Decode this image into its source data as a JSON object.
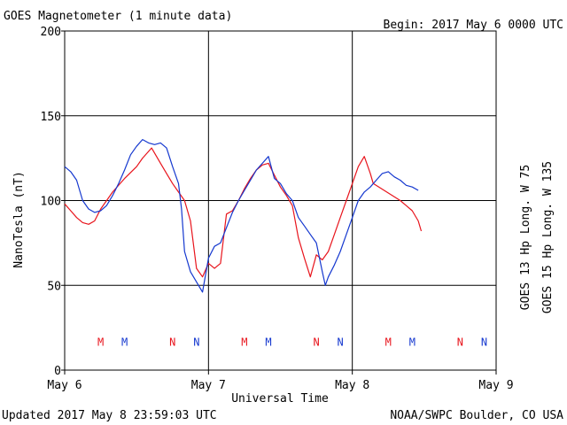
{
  "chart_data": {
    "type": "line",
    "title": "GOES Magnetometer (1 minute data)",
    "begin_label": "Begin:  2017 May 6 0000 UTC",
    "updated_label": "Updated 2017 May  8 23:59:03 UTC",
    "credit_label": "NOAA/SWPC Boulder, CO USA",
    "xlabel": "Universal Time",
    "ylabel": "NanoTesla (nT)",
    "ylim": [
      0,
      200
    ],
    "yticks": [
      0,
      50,
      100,
      150,
      200
    ],
    "ytick_labels": [
      "0",
      "50",
      "100",
      "150",
      "200"
    ],
    "xlim": [
      0,
      72
    ],
    "xticks": [
      0,
      24,
      48,
      72
    ],
    "xtick_labels": [
      "May 6",
      "May 7",
      "May 8",
      "May 9"
    ],
    "grid": true,
    "x_unit": "hours since 2017 May 6 0000 UTC",
    "series": [
      {
        "name": "GOES 13 Hp  Long. W 75",
        "color": "#e8141c",
        "points": [
          [
            0,
            98
          ],
          [
            1,
            94
          ],
          [
            2,
            90
          ],
          [
            3,
            87
          ],
          [
            4,
            86
          ],
          [
            5,
            88
          ],
          [
            6,
            95
          ],
          [
            8,
            105
          ],
          [
            10,
            113
          ],
          [
            12,
            120
          ],
          [
            13,
            125
          ],
          [
            14,
            129
          ],
          [
            14.5,
            131
          ],
          [
            15,
            128
          ],
          [
            16,
            122
          ],
          [
            17,
            116
          ],
          [
            18,
            110
          ],
          [
            19,
            105
          ],
          [
            20,
            100
          ],
          [
            21,
            88
          ],
          [
            22,
            60
          ],
          [
            23,
            55
          ],
          [
            24,
            63
          ],
          [
            25,
            60
          ],
          [
            26,
            63
          ],
          [
            27,
            92
          ],
          [
            28,
            94
          ],
          [
            29,
            100
          ],
          [
            30,
            107
          ],
          [
            31,
            113
          ],
          [
            32,
            118
          ],
          [
            33,
            121
          ],
          [
            34,
            122
          ],
          [
            35,
            115
          ],
          [
            36,
            108
          ],
          [
            37,
            103
          ],
          [
            38,
            97
          ],
          [
            39,
            78
          ],
          [
            40,
            66
          ],
          [
            41,
            55
          ],
          [
            42,
            68
          ],
          [
            43,
            65
          ],
          [
            44,
            70
          ],
          [
            45,
            80
          ],
          [
            46,
            90
          ],
          [
            47,
            100
          ],
          [
            48,
            110
          ],
          [
            49,
            120
          ],
          [
            50,
            126
          ],
          [
            51,
            116
          ],
          [
            51.5,
            110
          ],
          [
            56,
            100
          ],
          [
            57,
            97
          ],
          [
            58,
            94
          ],
          [
            59,
            88
          ],
          [
            59.5,
            82
          ]
        ]
      },
      {
        "name": "GOES 15 Hp  Long. W 135",
        "color": "#1538cf",
        "points": [
          [
            0,
            120
          ],
          [
            1,
            117
          ],
          [
            2,
            112
          ],
          [
            3,
            100
          ],
          [
            4,
            95
          ],
          [
            5,
            93
          ],
          [
            6,
            94
          ],
          [
            7,
            97
          ],
          [
            8,
            103
          ],
          [
            9,
            110
          ],
          [
            10,
            118
          ],
          [
            11,
            127
          ],
          [
            12,
            132
          ],
          [
            13,
            136
          ],
          [
            14,
            134
          ],
          [
            15,
            133
          ],
          [
            16,
            134
          ],
          [
            17,
            131
          ],
          [
            18,
            120
          ],
          [
            19,
            110
          ],
          [
            19.5,
            95
          ],
          [
            20,
            70
          ],
          [
            21,
            58
          ],
          [
            22,
            52
          ],
          [
            23,
            46
          ],
          [
            24,
            66
          ],
          [
            25,
            73
          ],
          [
            26,
            75
          ],
          [
            27,
            84
          ],
          [
            28,
            93
          ],
          [
            29,
            100
          ],
          [
            30,
            106
          ],
          [
            31,
            112
          ],
          [
            32,
            118
          ],
          [
            33,
            122
          ],
          [
            34,
            126
          ],
          [
            35,
            113
          ],
          [
            36,
            110
          ],
          [
            37,
            104
          ],
          [
            38,
            100
          ],
          [
            39,
            90
          ],
          [
            40,
            85
          ],
          [
            41,
            80
          ],
          [
            42,
            75
          ],
          [
            43,
            58
          ],
          [
            43.5,
            50
          ],
          [
            44,
            55
          ],
          [
            45,
            62
          ],
          [
            46,
            70
          ],
          [
            47,
            80
          ],
          [
            48,
            90
          ],
          [
            49,
            100
          ],
          [
            50,
            105
          ],
          [
            51,
            108
          ],
          [
            52,
            112
          ],
          [
            53,
            116
          ],
          [
            54,
            117
          ],
          [
            55,
            114
          ],
          [
            56,
            112
          ],
          [
            57,
            109
          ],
          [
            58,
            108
          ],
          [
            59,
            106
          ]
        ]
      }
    ],
    "markers": [
      {
        "label": "M",
        "x": 6,
        "color": "#e8141c"
      },
      {
        "label": "M",
        "x": 10,
        "color": "#1538cf"
      },
      {
        "label": "N",
        "x": 18,
        "color": "#e8141c"
      },
      {
        "label": "N",
        "x": 22,
        "color": "#1538cf"
      },
      {
        "label": "M",
        "x": 30,
        "color": "#e8141c"
      },
      {
        "label": "M",
        "x": 34,
        "color": "#1538cf"
      },
      {
        "label": "N",
        "x": 42,
        "color": "#e8141c"
      },
      {
        "label": "N",
        "x": 46,
        "color": "#1538cf"
      },
      {
        "label": "M",
        "x": 54,
        "color": "#e8141c"
      },
      {
        "label": "M",
        "x": 58,
        "color": "#1538cf"
      },
      {
        "label": "N",
        "x": 66,
        "color": "#e8141c"
      },
      {
        "label": "N",
        "x": 70,
        "color": "#1538cf"
      }
    ],
    "marker_y": 17
  }
}
